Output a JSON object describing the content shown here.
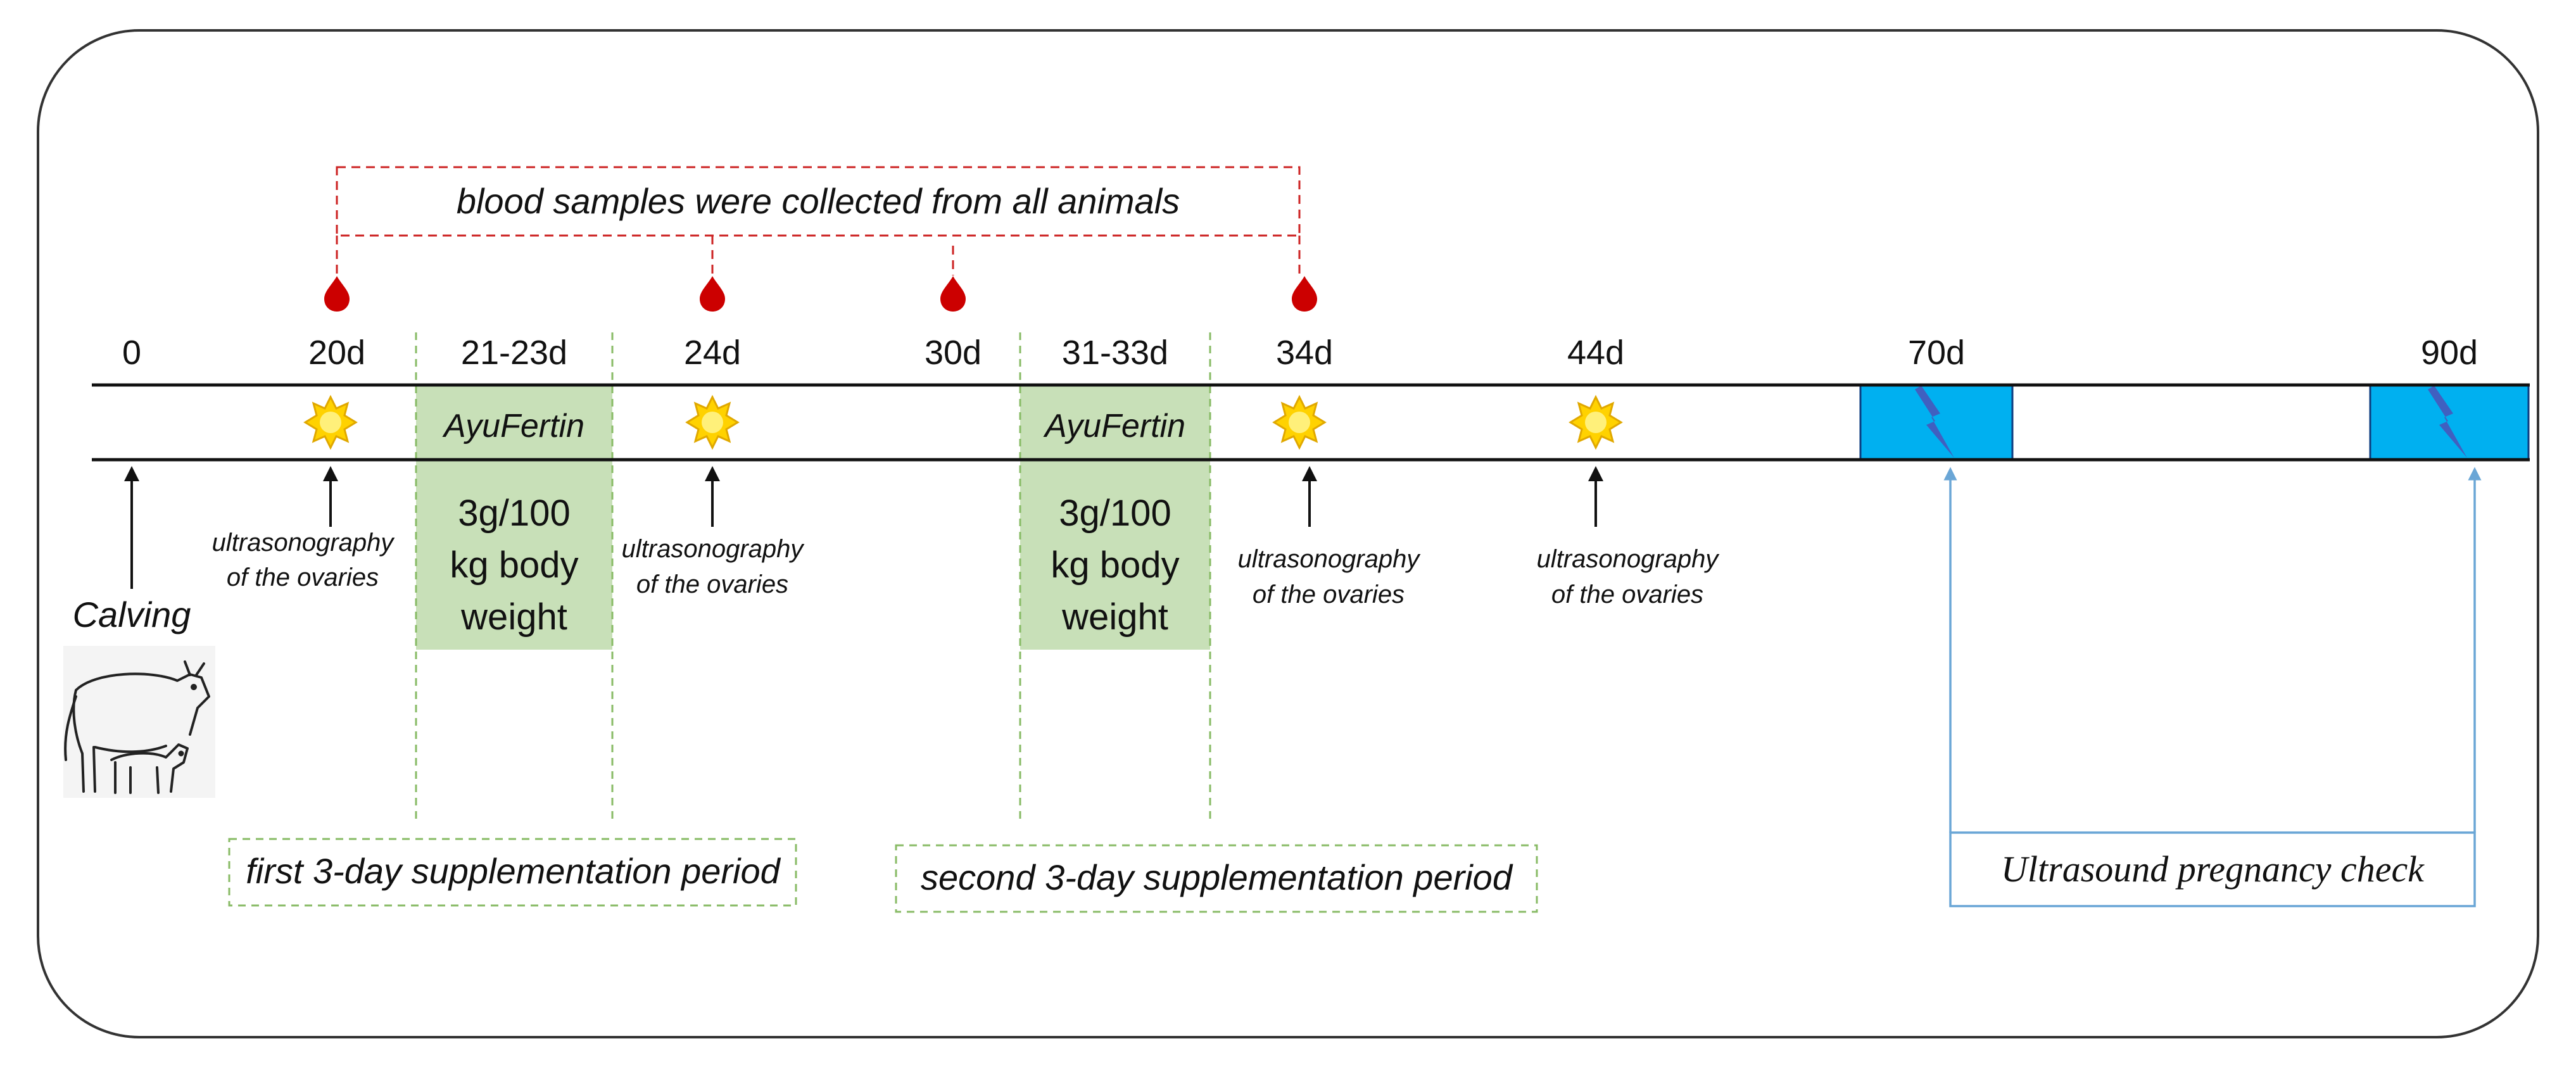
{
  "colors": {
    "outline": "#333333",
    "blood": "#cc0000",
    "blood_bracket": "#cc2222",
    "green_fill": "#c8e0b8",
    "green_dash": "#88bb66",
    "ultrasound_fill": "#00b0f0",
    "ultrasound_link": "#6aa6d6",
    "lightning": "#4060c0",
    "sun": "#ffd200"
  },
  "blood_note": "blood samples were collected from all animals",
  "timeline": {
    "labels": [
      "0",
      "20d",
      "21-23d",
      "24d",
      "30d",
      "31-33d",
      "34d",
      "44d",
      "70d",
      "90d"
    ]
  },
  "supplement": {
    "name": "AyuFertin",
    "dose_lines": [
      "3g/100",
      "kg body",
      "weight"
    ]
  },
  "ultrasonography": {
    "line1": "ultrasonography",
    "line2": "of the ovaries"
  },
  "calving": {
    "label": "Calving",
    "icon": "cow-and-calf-icon"
  },
  "periods": {
    "first": "first 3-day supplementation period",
    "second": "second 3-day supplementation period"
  },
  "pregnancy_check": "Ultrasound pregnancy check",
  "icons": {
    "blood": "blood-drop-icon",
    "ovary_scan": "sun-icon",
    "ultrasound": "lightning-icon"
  }
}
